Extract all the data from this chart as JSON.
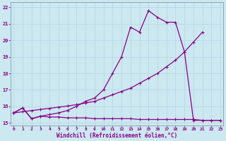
{
  "xlabel": "Windchill (Refroidissement éolien,°C)",
  "bg_color": "#cce8f0",
  "grid_color": "#aaccdd",
  "line_color": "#880088",
  "x_ticks": [
    0,
    1,
    2,
    3,
    4,
    5,
    6,
    7,
    8,
    9,
    10,
    11,
    12,
    13,
    14,
    15,
    16,
    17,
    18,
    19,
    20,
    21,
    22,
    23
  ],
  "y_ticks": [
    15,
    16,
    17,
    18,
    19,
    20,
    21,
    22
  ],
  "xlim": [
    -0.3,
    23.3
  ],
  "ylim": [
    14.85,
    22.3
  ],
  "line1_x": [
    0,
    1,
    2,
    3,
    4,
    5,
    6,
    7,
    8,
    9,
    10,
    11,
    12,
    13,
    14,
    15,
    16,
    17,
    18,
    19,
    20,
    21,
    22,
    23
  ],
  "line1_y": [
    15.6,
    15.9,
    15.25,
    15.4,
    15.35,
    15.35,
    15.3,
    15.3,
    15.3,
    15.25,
    15.25,
    15.25,
    15.25,
    15.25,
    15.2,
    15.2,
    15.2,
    15.2,
    15.2,
    15.2,
    15.2,
    15.15,
    15.15,
    15.15
  ],
  "line2_x": [
    0,
    1,
    2,
    3,
    4,
    5,
    6,
    7,
    8,
    9,
    10,
    11,
    12,
    13,
    14,
    15,
    16,
    17,
    18,
    19,
    20,
    21
  ],
  "line2_y": [
    15.6,
    15.67,
    15.74,
    15.81,
    15.88,
    15.95,
    16.02,
    16.1,
    16.2,
    16.3,
    16.5,
    16.7,
    16.9,
    17.1,
    17.4,
    17.7,
    18.0,
    18.4,
    18.8,
    19.3,
    19.9,
    20.5
  ],
  "line3_x": [
    0,
    1,
    2,
    3,
    4,
    5,
    6,
    7,
    8,
    9,
    10,
    11,
    12,
    13,
    14,
    15,
    16,
    17,
    18,
    19,
    20,
    21,
    22,
    23
  ],
  "line3_y": [
    15.6,
    15.9,
    15.25,
    15.4,
    15.5,
    15.6,
    15.75,
    16.0,
    16.3,
    16.5,
    17.0,
    18.0,
    19.0,
    20.8,
    20.5,
    21.8,
    21.4,
    21.1,
    21.1,
    19.3,
    15.15,
    15.15,
    15.15,
    15.15
  ],
  "marker": "+",
  "markersize": 3.5,
  "linewidth": 0.9
}
